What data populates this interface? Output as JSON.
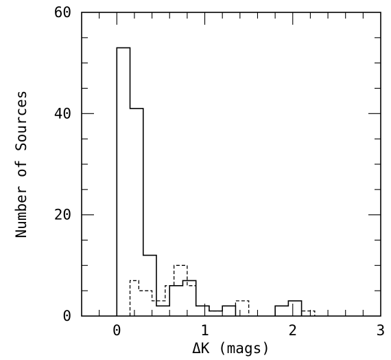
{
  "chart_data": {
    "type": "histogram",
    "xlabel": "ΔK (mags)",
    "ylabel": "Number of Sources",
    "xlim": [
      -0.4,
      3.0
    ],
    "ylim": [
      0,
      60
    ],
    "xticks": [
      0,
      1,
      2,
      3
    ],
    "yticks": [
      0,
      20,
      40,
      60
    ],
    "xminor_step": 0.2,
    "yminor_step": 5,
    "series": [
      {
        "style": "solid",
        "bins": [
          {
            "x0": 0.0,
            "x1": 0.15,
            "y": 53
          },
          {
            "x0": 0.15,
            "x1": 0.3,
            "y": 41
          },
          {
            "x0": 0.3,
            "x1": 0.45,
            "y": 12
          },
          {
            "x0": 0.45,
            "x1": 0.6,
            "y": 2
          },
          {
            "x0": 0.6,
            "x1": 0.75,
            "y": 6
          },
          {
            "x0": 0.75,
            "x1": 0.9,
            "y": 7
          },
          {
            "x0": 0.9,
            "x1": 1.05,
            "y": 2
          },
          {
            "x0": 1.05,
            "x1": 1.2,
            "y": 1
          },
          {
            "x0": 1.2,
            "x1": 1.35,
            "y": 2
          },
          {
            "x0": 1.8,
            "x1": 1.95,
            "y": 2
          },
          {
            "x0": 1.95,
            "x1": 2.1,
            "y": 3
          }
        ]
      },
      {
        "style": "dashed",
        "bins": [
          {
            "x0": 0.15,
            "x1": 0.25,
            "y": 7
          },
          {
            "x0": 0.25,
            "x1": 0.4,
            "y": 5
          },
          {
            "x0": 0.4,
            "x1": 0.55,
            "y": 3
          },
          {
            "x0": 0.55,
            "x1": 0.65,
            "y": 6
          },
          {
            "x0": 0.65,
            "x1": 0.8,
            "y": 10
          },
          {
            "x0": 0.8,
            "x1": 0.9,
            "y": 6
          },
          {
            "x0": 0.9,
            "x1": 1.05,
            "y": 2
          },
          {
            "x0": 1.05,
            "x1": 1.2,
            "y": 1
          },
          {
            "x0": 1.2,
            "x1": 1.35,
            "y": 2
          },
          {
            "x0": 1.35,
            "x1": 1.5,
            "y": 3
          },
          {
            "x0": 2.1,
            "x1": 2.25,
            "y": 1
          }
        ]
      }
    ]
  }
}
